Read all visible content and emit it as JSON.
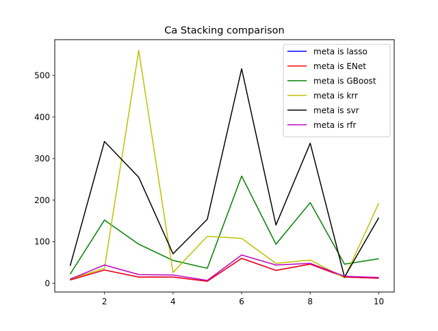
{
  "chart_data": {
    "type": "line",
    "title": "Ca Stacking comparison",
    "xlabel": "",
    "ylabel": "",
    "x": [
      1,
      2,
      3,
      4,
      5,
      6,
      7,
      8,
      9,
      10
    ],
    "xlim": [
      0.55,
      10.45
    ],
    "ylim": [
      -21,
      586
    ],
    "xticks": [
      2,
      4,
      6,
      8,
      10
    ],
    "yticks": [
      0,
      100,
      200,
      300,
      400,
      500
    ],
    "grid": false,
    "legend_position": "top-right",
    "series": [
      {
        "name": "meta is lasso",
        "color": "#0000ff",
        "values": [
          8,
          32,
          15,
          15,
          5,
          60,
          31,
          46,
          15,
          12
        ]
      },
      {
        "name": "meta is ENet",
        "color": "#ff0000",
        "values": [
          8,
          32,
          15,
          15,
          5,
          60,
          31,
          46,
          15,
          12
        ]
      },
      {
        "name": "meta is GBoost",
        "color": "#008000",
        "values": [
          22,
          152,
          94,
          55,
          36,
          258,
          94,
          194,
          46,
          59
        ]
      },
      {
        "name": "meta is krr",
        "color": "#bfbf00",
        "values": [
          10,
          36,
          560,
          26,
          113,
          108,
          48,
          56,
          13,
          193
        ]
      },
      {
        "name": "meta is svr",
        "color": "#000000",
        "values": [
          42,
          341,
          255,
          71,
          154,
          516,
          140,
          337,
          15,
          158
        ]
      },
      {
        "name": "meta is rfr",
        "color": "#bf00bf",
        "values": [
          10,
          44,
          21,
          20,
          7,
          68,
          44,
          48,
          17,
          14
        ]
      }
    ]
  }
}
